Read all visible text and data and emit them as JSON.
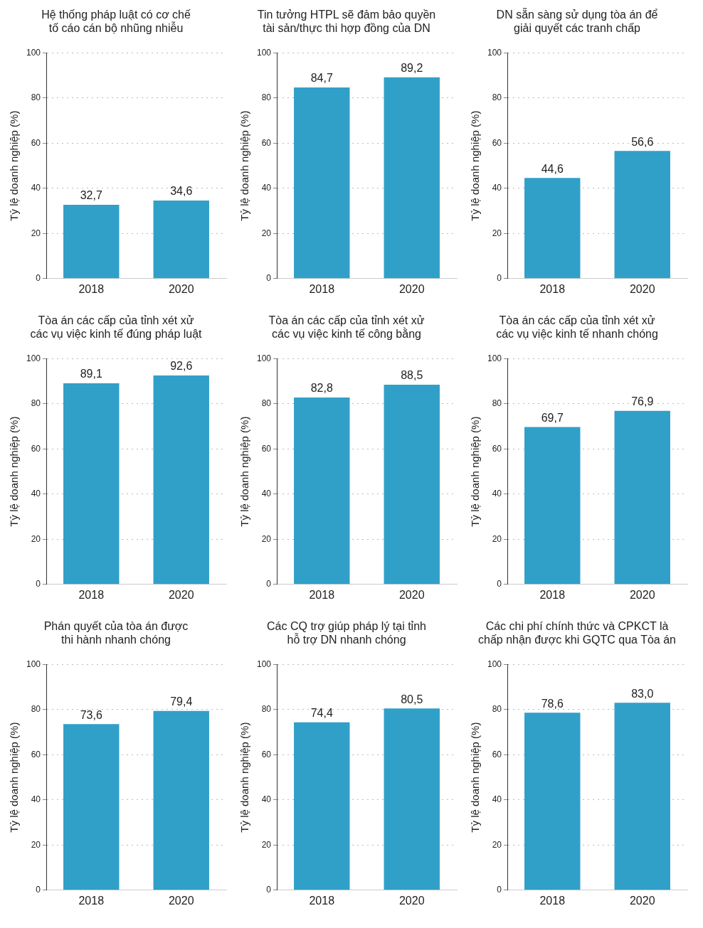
{
  "chart_data": [
    {
      "type": "bar",
      "title": "Hệ thống pháp luật có cơ chế\ntố cáo cán bộ nhũng nhiễu",
      "ylabel": "Tỷ lệ doanh nghiệp (%)",
      "categories": [
        "2018",
        "2020"
      ],
      "values": [
        32.7,
        34.6
      ],
      "value_labels": [
        "32,7",
        "34,6"
      ],
      "color": "#30a0c8",
      "ylim": [
        0,
        100
      ],
      "yticks": [
        0,
        20,
        40,
        60,
        80,
        100
      ],
      "grid": "y",
      "legend": false
    },
    {
      "type": "bar",
      "title": "Tin tưởng HTPL sẽ đảm bảo quyền\ntài sản/thực thi hợp đồng của DN",
      "ylabel": "Tỷ lệ doanh nghiệp (%)",
      "categories": [
        "2018",
        "2020"
      ],
      "values": [
        84.7,
        89.2
      ],
      "value_labels": [
        "84,7",
        "89,2"
      ],
      "color": "#30a0c8",
      "ylim": [
        0,
        100
      ],
      "yticks": [
        0,
        20,
        40,
        60,
        80,
        100
      ],
      "grid": "y",
      "legend": false
    },
    {
      "type": "bar",
      "title": "DN sẵn sàng sử dụng tòa án để\ngiải quyết các tranh chấp",
      "ylabel": "Tỷ lệ doanh nghiệp (%)",
      "categories": [
        "2018",
        "2020"
      ],
      "values": [
        44.6,
        56.6
      ],
      "value_labels": [
        "44,6",
        "56,6"
      ],
      "color": "#30a0c8",
      "ylim": [
        0,
        100
      ],
      "yticks": [
        0,
        20,
        40,
        60,
        80,
        100
      ],
      "grid": "y",
      "legend": false
    },
    {
      "type": "bar",
      "title": "Tòa án các cấp của tỉnh xét xử\ncác vụ việc kinh tế đúng pháp luật",
      "ylabel": "Tỷ lệ doanh nghiệp (%)",
      "categories": [
        "2018",
        "2020"
      ],
      "values": [
        89.1,
        92.6
      ],
      "value_labels": [
        "89,1",
        "92,6"
      ],
      "color": "#30a0c8",
      "ylim": [
        0,
        100
      ],
      "yticks": [
        0,
        20,
        40,
        60,
        80,
        100
      ],
      "grid": "y",
      "legend": false
    },
    {
      "type": "bar",
      "title": "Tòa án các cấp của tỉnh xét xử\ncác vụ việc kinh tế công bằng",
      "ylabel": "Tỷ lệ doanh nghiệp (%)",
      "categories": [
        "2018",
        "2020"
      ],
      "values": [
        82.8,
        88.5
      ],
      "value_labels": [
        "82,8",
        "88,5"
      ],
      "color": "#30a0c8",
      "ylim": [
        0,
        100
      ],
      "yticks": [
        0,
        20,
        40,
        60,
        80,
        100
      ],
      "grid": "y",
      "legend": false
    },
    {
      "type": "bar",
      "title": "Tòa án các cấp của tỉnh xét xử\ncác vụ việc kinh tế nhanh chóng",
      "ylabel": "Tỷ lệ doanh nghiệp (%)",
      "categories": [
        "2018",
        "2020"
      ],
      "values": [
        69.7,
        76.9
      ],
      "value_labels": [
        "69,7",
        "76,9"
      ],
      "color": "#30a0c8",
      "ylim": [
        0,
        100
      ],
      "yticks": [
        0,
        20,
        40,
        60,
        80,
        100
      ],
      "grid": "y",
      "legend": false
    },
    {
      "type": "bar",
      "title": "Phán quyết của tòa án được\nthi hành nhanh chóng",
      "ylabel": "Tỷ lệ doanh nghiệp (%)",
      "categories": [
        "2018",
        "2020"
      ],
      "values": [
        73.6,
        79.4
      ],
      "value_labels": [
        "73,6",
        "79,4"
      ],
      "color": "#30a0c8",
      "ylim": [
        0,
        100
      ],
      "yticks": [
        0,
        20,
        40,
        60,
        80,
        100
      ],
      "grid": "y",
      "legend": false
    },
    {
      "type": "bar",
      "title": "Các CQ trợ giúp pháp lý tại tỉnh\nhỗ trợ DN nhanh chóng",
      "ylabel": "Tỷ lệ doanh nghiệp (%)",
      "categories": [
        "2018",
        "2020"
      ],
      "values": [
        74.4,
        80.5
      ],
      "value_labels": [
        "74,4",
        "80,5"
      ],
      "color": "#30a0c8",
      "ylim": [
        0,
        100
      ],
      "yticks": [
        0,
        20,
        40,
        60,
        80,
        100
      ],
      "grid": "y",
      "legend": false
    },
    {
      "type": "bar",
      "title": "Các chi phí chính thức và CPKCT là\nchấp nhận được khi GQTC qua Tòa án",
      "ylabel": "Tỷ lệ doanh nghiệp (%)",
      "categories": [
        "2018",
        "2020"
      ],
      "values": [
        78.6,
        83.0
      ],
      "value_labels": [
        "78,6",
        "83,0"
      ],
      "color": "#30a0c8",
      "ylim": [
        0,
        100
      ],
      "yticks": [
        0,
        20,
        40,
        60,
        80,
        100
      ],
      "grid": "y",
      "legend": false
    }
  ]
}
